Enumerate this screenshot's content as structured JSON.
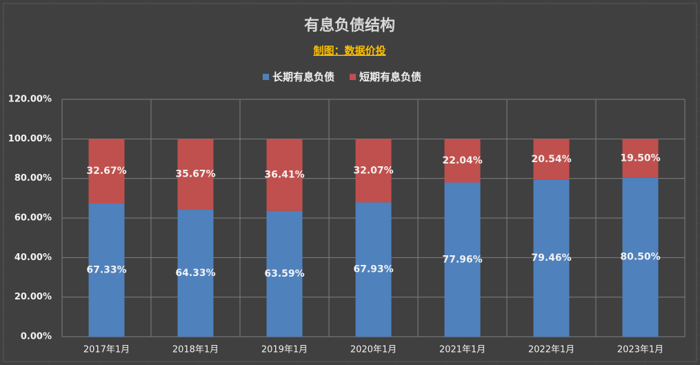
{
  "chart_data": {
    "type": "stacked_bar",
    "title": "有息负债结构",
    "subtitle": "制图：数据价投",
    "categories": [
      "2017年1月",
      "2018年1月",
      "2019年1月",
      "2020年1月",
      "2021年1月",
      "2022年1月",
      "2023年1月"
    ],
    "series": [
      {
        "name": "长期有息负债",
        "color": "#4f81bd",
        "values": [
          67.33,
          64.33,
          63.59,
          67.93,
          77.96,
          79.46,
          80.5
        ],
        "value_labels": [
          "67.33%",
          "64.33%",
          "63.59%",
          "67.93%",
          "77.96%",
          "79.46%",
          "80.50%"
        ]
      },
      {
        "name": "短期有息负债",
        "color": "#c0504d",
        "values": [
          32.67,
          35.67,
          36.41,
          32.07,
          22.04,
          20.54,
          19.5
        ],
        "value_labels": [
          "32.67%",
          "35.67%",
          "36.41%",
          "32.07%",
          "22.04%",
          "20.54%",
          "19.50%"
        ]
      }
    ],
    "ylim": [
      0,
      120
    ],
    "yticks": [
      {
        "value": 0,
        "label": "0.00%"
      },
      {
        "value": 20,
        "label": "20.00%"
      },
      {
        "value": 40,
        "label": "40.00%"
      },
      {
        "value": 60,
        "label": "60.00%"
      },
      {
        "value": 80,
        "label": "80.00%"
      },
      {
        "value": 100,
        "label": "100.00%"
      },
      {
        "value": 120,
        "label": "120.00%"
      }
    ],
    "grid": true,
    "legend": "top"
  }
}
